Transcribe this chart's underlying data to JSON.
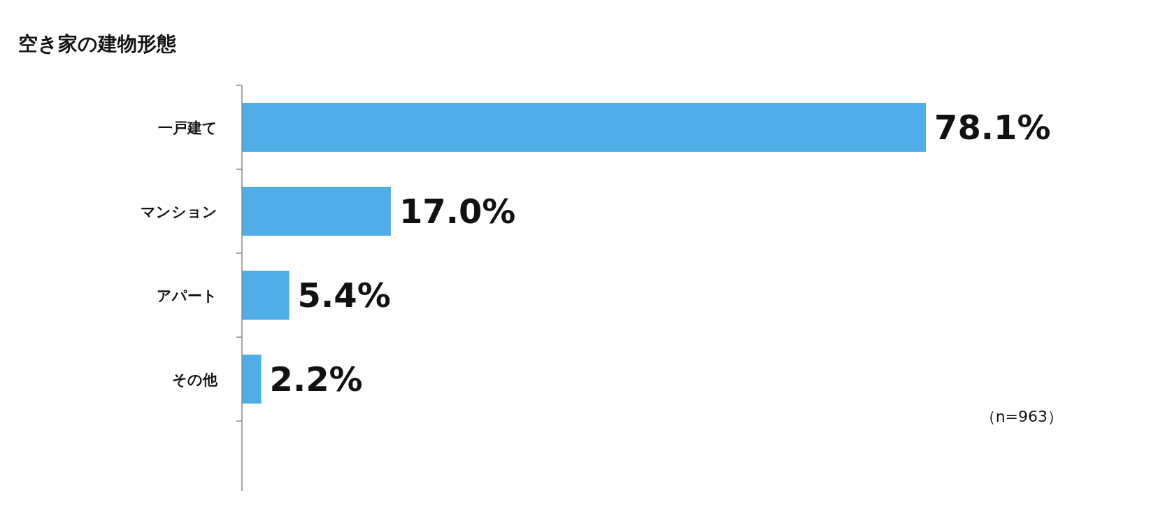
{
  "chart_data": {
    "type": "bar",
    "orientation": "horizontal",
    "title": "空き家の建物形態",
    "categories": [
      "一戸建て",
      "マンション",
      "アパート",
      "その他"
    ],
    "values": [
      78.1,
      17.0,
      5.4,
      2.2
    ],
    "value_labels": [
      "78.1%",
      "17.0%",
      "5.4%",
      "2.2%"
    ],
    "color": "#4faee8",
    "annotations": [
      "（n=963）"
    ]
  }
}
